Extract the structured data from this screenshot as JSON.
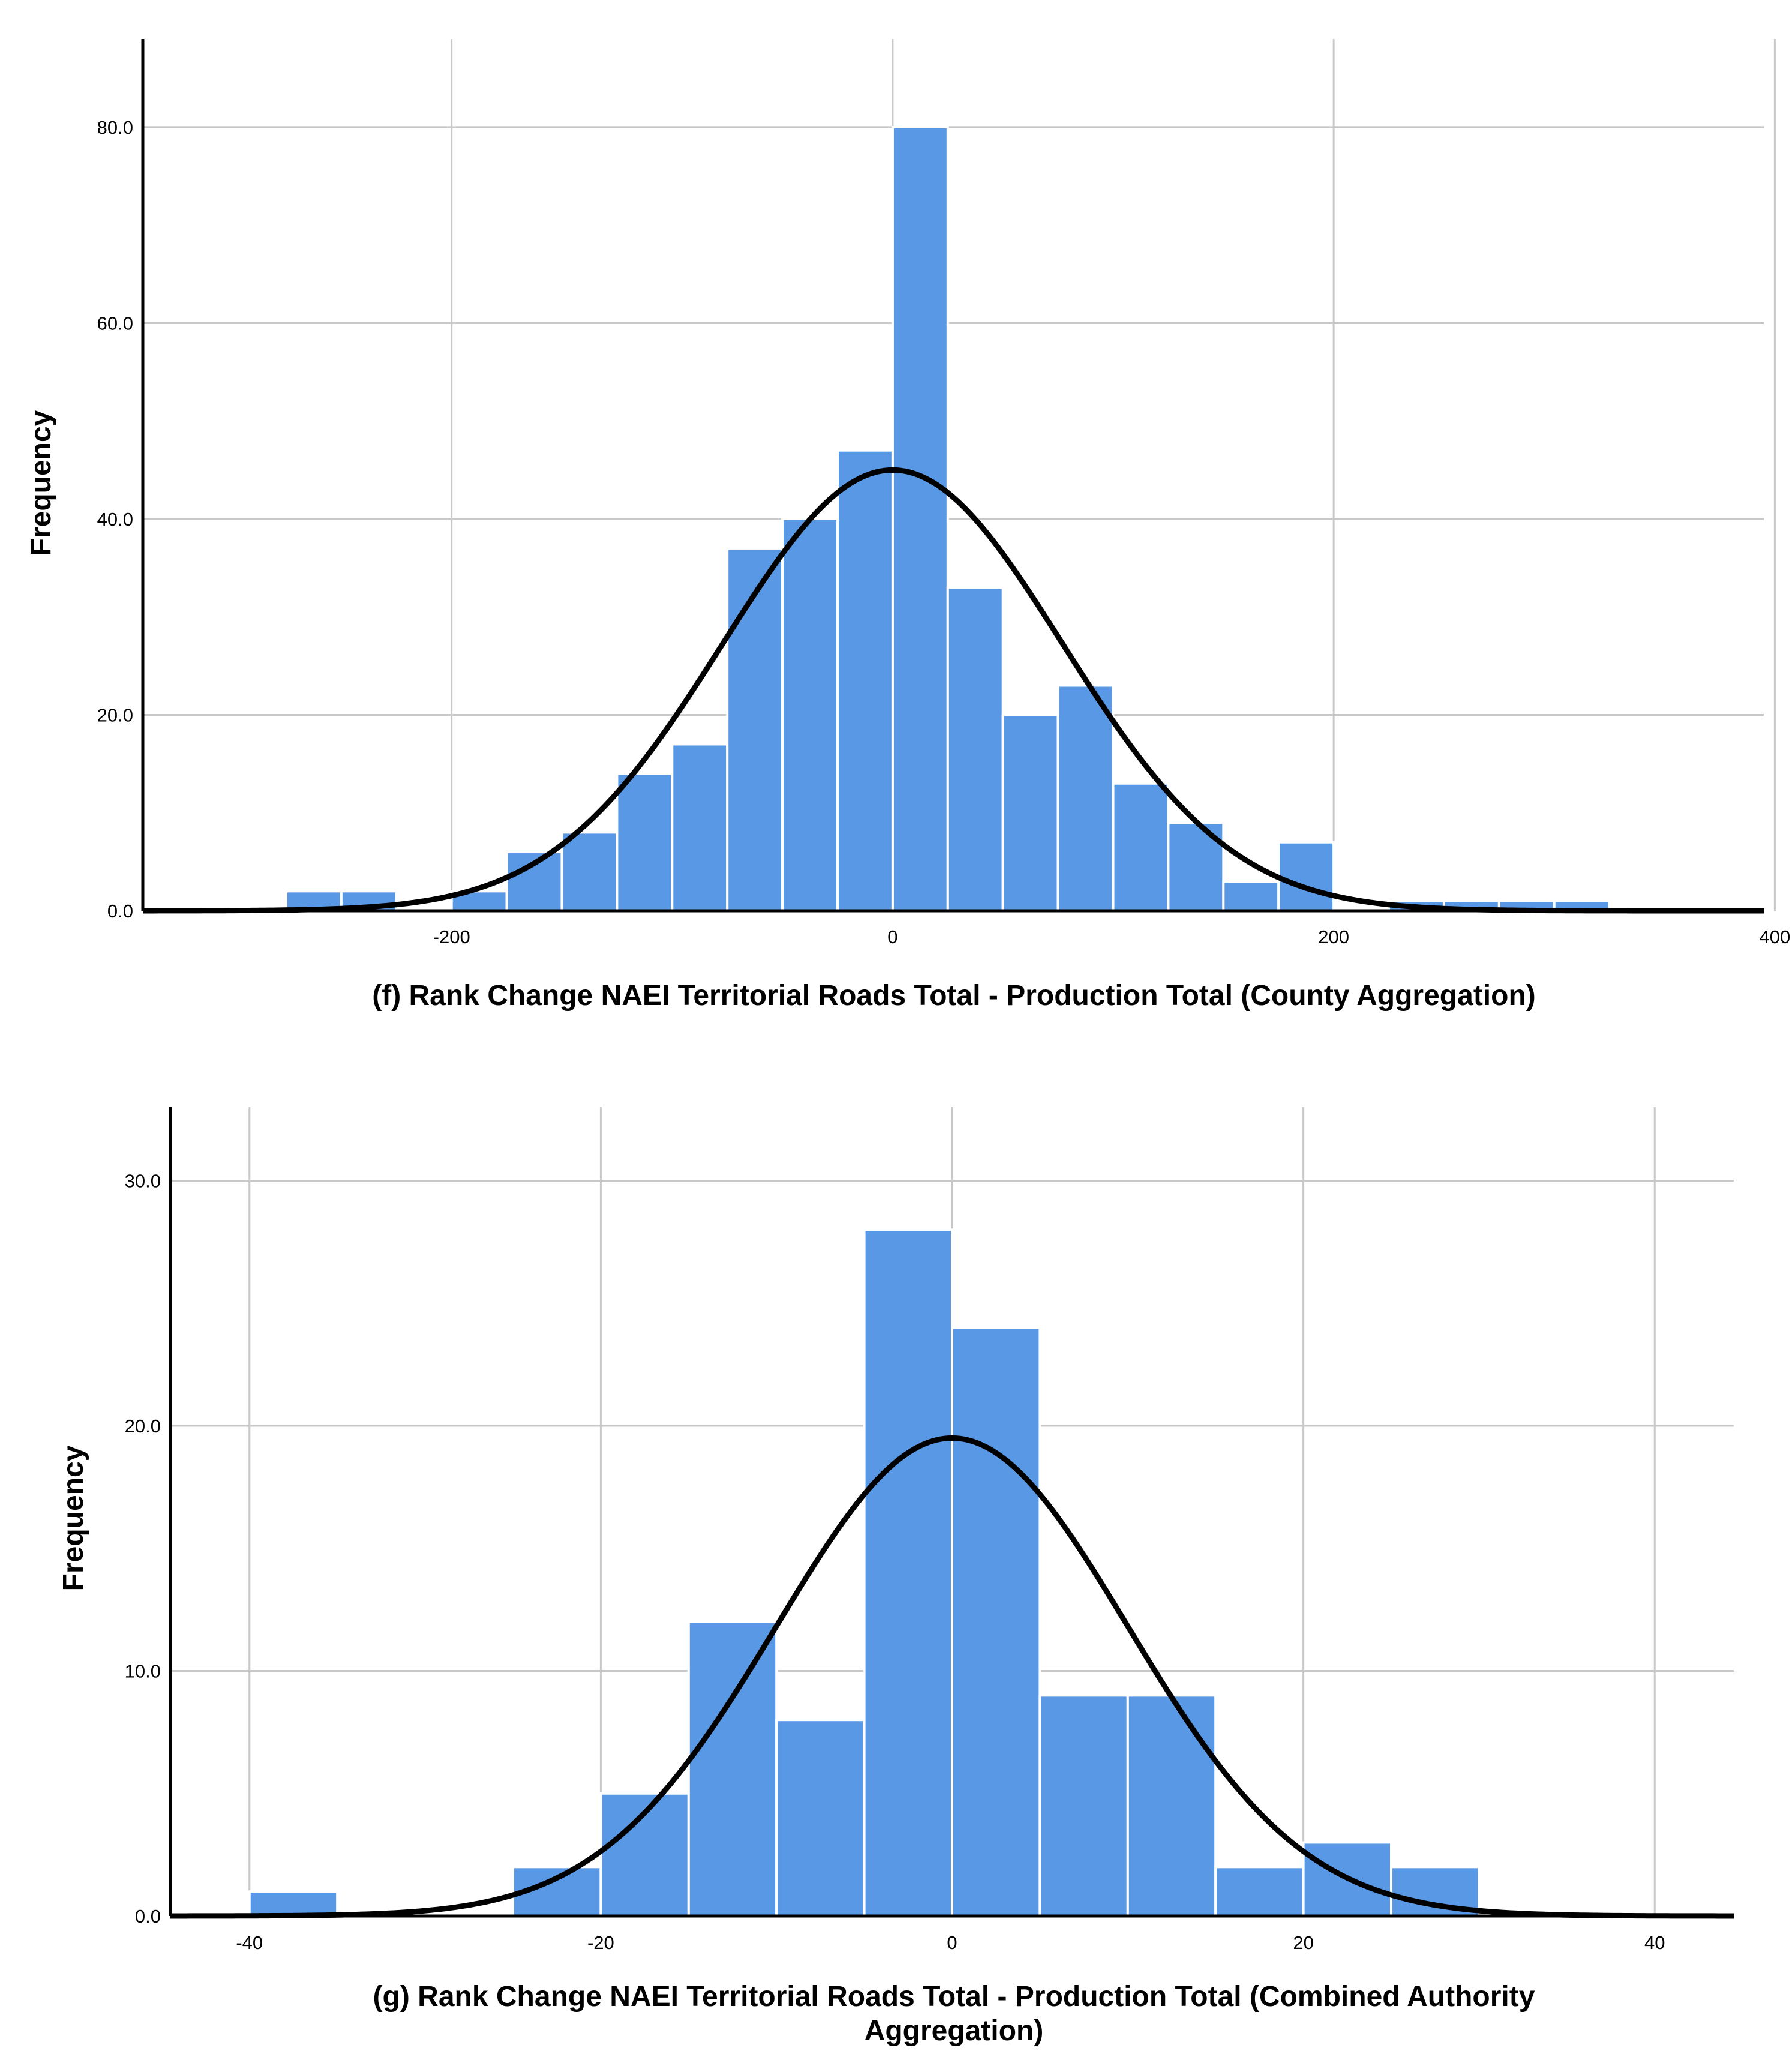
{
  "colors": {
    "bar": "#5898e5",
    "curve": "#000000",
    "grid": "#c8c8c8"
  },
  "chart_data": [
    {
      "type": "bar",
      "subtype": "histogram-with-normal-curve",
      "title": "",
      "xlabel": "(f) Rank Change NAEI Territorial Roads Total - Production Total (County Aggregation)",
      "ylabel": "Frequency",
      "xlim": [
        -340,
        395
      ],
      "ylim": [
        0,
        89
      ],
      "x_ticks": [
        -200,
        0,
        200,
        400
      ],
      "x_tick_labels": [
        "-200",
        "0",
        "200",
        "400"
      ],
      "y_ticks": [
        0,
        20,
        40,
        60,
        80
      ],
      "y_tick_labels": [
        "0.0",
        "20.0",
        "40.0",
        "60.0",
        "80.0"
      ],
      "grid": true,
      "bin_width": 25,
      "bins": [
        {
          "x0": -275,
          "x1": -250,
          "value": 2
        },
        {
          "x0": -250,
          "x1": -225,
          "value": 2
        },
        {
          "x0": -200,
          "x1": -175,
          "value": 2
        },
        {
          "x0": -175,
          "x1": -150,
          "value": 6
        },
        {
          "x0": -150,
          "x1": -125,
          "value": 8
        },
        {
          "x0": -125,
          "x1": -100,
          "value": 14
        },
        {
          "x0": -100,
          "x1": -75,
          "value": 17
        },
        {
          "x0": -75,
          "x1": -50,
          "value": 37
        },
        {
          "x0": -50,
          "x1": -25,
          "value": 40
        },
        {
          "x0": -25,
          "x1": 0,
          "value": 47
        },
        {
          "x0": 0,
          "x1": 25,
          "value": 80
        },
        {
          "x0": 25,
          "x1": 50,
          "value": 33
        },
        {
          "x0": 50,
          "x1": 75,
          "value": 20
        },
        {
          "x0": 75,
          "x1": 100,
          "value": 23
        },
        {
          "x0": 100,
          "x1": 125,
          "value": 13
        },
        {
          "x0": 125,
          "x1": 150,
          "value": 9
        },
        {
          "x0": 150,
          "x1": 175,
          "value": 3
        },
        {
          "x0": 175,
          "x1": 200,
          "value": 7
        },
        {
          "x0": 225,
          "x1": 250,
          "value": 1
        },
        {
          "x0": 250,
          "x1": 275,
          "value": 1
        },
        {
          "x0": 275,
          "x1": 300,
          "value": 1
        },
        {
          "x0": 300,
          "x1": 325,
          "value": 1
        }
      ],
      "normal_curve": {
        "mean": 0,
        "std_dev": 77,
        "peak": 45
      }
    },
    {
      "type": "bar",
      "subtype": "histogram-with-normal-curve",
      "title": "",
      "xlabel": "(g) Rank Change NAEI Territorial Roads Total - Production Total (Combined Authority",
      "xlabel_line2": "Aggregation)",
      "ylabel": "Frequency",
      "xlim": [
        -44.5,
        44.5
      ],
      "ylim": [
        0,
        33
      ],
      "x_ticks": [
        -40,
        -20,
        0,
        20,
        40
      ],
      "x_tick_labels": [
        "-40",
        "-20",
        "0",
        "20",
        "40"
      ],
      "y_ticks": [
        0,
        10,
        20,
        30
      ],
      "y_tick_labels": [
        "0.0",
        "10.0",
        "20.0",
        "30.0"
      ],
      "grid": true,
      "bin_width": 5,
      "bins": [
        {
          "x0": -40,
          "x1": -35,
          "value": 1
        },
        {
          "x0": -25,
          "x1": -20,
          "value": 2
        },
        {
          "x0": -20,
          "x1": -15,
          "value": 5
        },
        {
          "x0": -15,
          "x1": -10,
          "value": 12
        },
        {
          "x0": -10,
          "x1": -5,
          "value": 8
        },
        {
          "x0": -5,
          "x1": 0,
          "value": 28
        },
        {
          "x0": 0,
          "x1": 5,
          "value": 24
        },
        {
          "x0": 5,
          "x1": 10,
          "value": 9
        },
        {
          "x0": 10,
          "x1": 15,
          "value": 9
        },
        {
          "x0": 15,
          "x1": 20,
          "value": 2
        },
        {
          "x0": 20,
          "x1": 25,
          "value": 3
        },
        {
          "x0": 25,
          "x1": 30,
          "value": 2
        }
      ],
      "normal_curve": {
        "mean": 0,
        "std_dev": 10,
        "peak": 19.5
      }
    }
  ]
}
